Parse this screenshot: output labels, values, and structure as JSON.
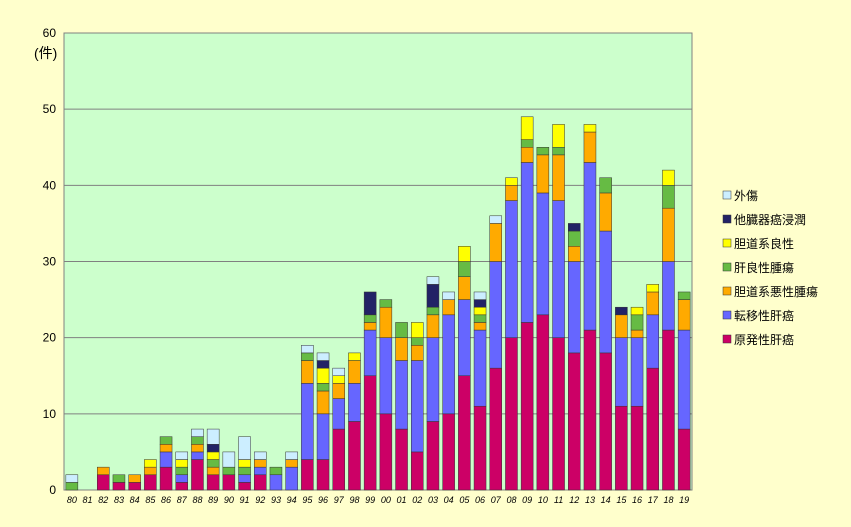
{
  "chart_data": {
    "type": "bar",
    "stacked": true,
    "unit_label": "(件)",
    "ylim": [
      0,
      60
    ],
    "yticks": [
      0,
      10,
      20,
      30,
      40,
      50,
      60
    ],
    "grid": true,
    "legend_position": "right",
    "plot_background": "#CCFFCC",
    "categories": [
      "80",
      "81",
      "82",
      "83",
      "84",
      "85",
      "86",
      "87",
      "88",
      "89",
      "90",
      "91",
      "92",
      "93",
      "94",
      "95",
      "96",
      "97",
      "98",
      "99",
      "00",
      "01",
      "02",
      "03",
      "04",
      "05",
      "06",
      "07",
      "08",
      "09",
      "10",
      "11",
      "12",
      "13",
      "14",
      "15",
      "16",
      "17",
      "18",
      "19"
    ],
    "series": [
      {
        "name": "原発性肝癌",
        "color": "#CC0066",
        "values": [
          0,
          0,
          2,
          1,
          1,
          2,
          3,
          1,
          4,
          2,
          2,
          1,
          2,
          0,
          0,
          4,
          4,
          8,
          9,
          15,
          10,
          8,
          5,
          9,
          10,
          15,
          11,
          16,
          20,
          22,
          23,
          20,
          18,
          21,
          18,
          11,
          11,
          16,
          21,
          8
        ]
      },
      {
        "name": "転移性肝癌",
        "color": "#6666FF",
        "values": [
          0,
          0,
          0,
          0,
          0,
          0,
          2,
          1,
          1,
          0,
          0,
          1,
          1,
          2,
          3,
          10,
          6,
          4,
          5,
          6,
          10,
          9,
          12,
          11,
          13,
          10,
          10,
          14,
          18,
          21,
          16,
          18,
          12,
          22,
          16,
          9,
          9,
          7,
          9,
          13
        ]
      },
      {
        "name": "胆道系悪性腫瘍",
        "color": "#FFAA00",
        "values": [
          0,
          0,
          1,
          0,
          1,
          1,
          1,
          0,
          1,
          1,
          0,
          0,
          1,
          0,
          1,
          3,
          3,
          2,
          3,
          1,
          4,
          3,
          2,
          3,
          2,
          3,
          1,
          5,
          2,
          2,
          5,
          6,
          2,
          4,
          5,
          3,
          1,
          3,
          7,
          4
        ]
      },
      {
        "name": "肝良性腫瘍",
        "color": "#66BB44",
        "values": [
          1,
          0,
          0,
          1,
          0,
          0,
          1,
          1,
          1,
          1,
          1,
          1,
          0,
          1,
          0,
          1,
          1,
          0,
          0,
          1,
          1,
          2,
          1,
          1,
          0,
          2,
          1,
          0,
          0,
          1,
          1,
          1,
          2,
          0,
          2,
          0,
          2,
          0,
          3,
          1
        ]
      },
      {
        "name": "胆道系良性",
        "color": "#FFFF00",
        "values": [
          0,
          0,
          0,
          0,
          0,
          1,
          0,
          1,
          0,
          1,
          0,
          1,
          0,
          0,
          0,
          0,
          2,
          1,
          1,
          0,
          0,
          0,
          2,
          0,
          0,
          2,
          1,
          0,
          1,
          3,
          0,
          3,
          0,
          1,
          0,
          0,
          1,
          1,
          2,
          0
        ]
      },
      {
        "name": "他臓器癌浸潤",
        "color": "#222266",
        "values": [
          0,
          0,
          0,
          0,
          0,
          0,
          0,
          0,
          0,
          1,
          0,
          0,
          0,
          0,
          0,
          0,
          1,
          0,
          0,
          3,
          0,
          0,
          0,
          3,
          0,
          0,
          1,
          0,
          0,
          0,
          0,
          0,
          1,
          0,
          0,
          1,
          0,
          0,
          0,
          0
        ]
      },
      {
        "name": "外傷",
        "color": "#CCEEFF",
        "values": [
          1,
          0,
          0,
          0,
          0,
          0,
          0,
          1,
          1,
          2,
          2,
          3,
          1,
          0,
          1,
          1,
          1,
          1,
          0,
          0,
          0,
          0,
          0,
          1,
          1,
          0,
          1,
          1,
          0,
          0,
          0,
          0,
          0,
          0,
          0,
          0,
          0,
          0,
          0,
          0
        ]
      }
    ],
    "legend_order": [
      "外傷",
      "他臓器癌浸潤",
      "胆道系良性",
      "肝良性腫瘍",
      "胆道系悪性腫瘍",
      "転移性肝癌",
      "原発性肝癌"
    ]
  }
}
